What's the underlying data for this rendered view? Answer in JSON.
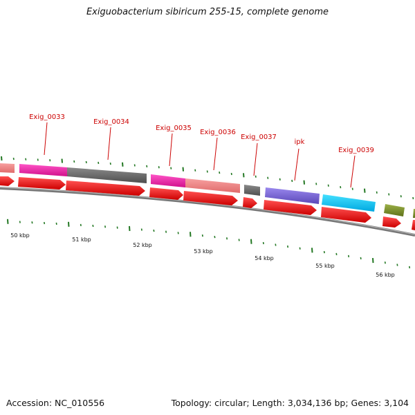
{
  "title": "Exiguobacterium sibiricum 255-15, complete genome",
  "accession_text": "Accession: NC_010556",
  "summary_text": "Topology: circular; Length: 3,034,136 bp; Genes: 3,104",
  "colors": {
    "label": "#cc0000",
    "cds": "#ee0000",
    "backbone": "#777777",
    "tick": "#227722"
  },
  "gene_labels": [
    "Exig_0033",
    "Exig_0034",
    "Exig_0035",
    "Exig_0036",
    "Exig_0037",
    "ipk",
    "Exig_0039"
  ],
  "kbp_labels": [
    "50 kbp",
    "51 kbp",
    "52 kbp",
    "53 kbp",
    "54 kbp",
    "55 kbp",
    "56 kbp"
  ]
}
